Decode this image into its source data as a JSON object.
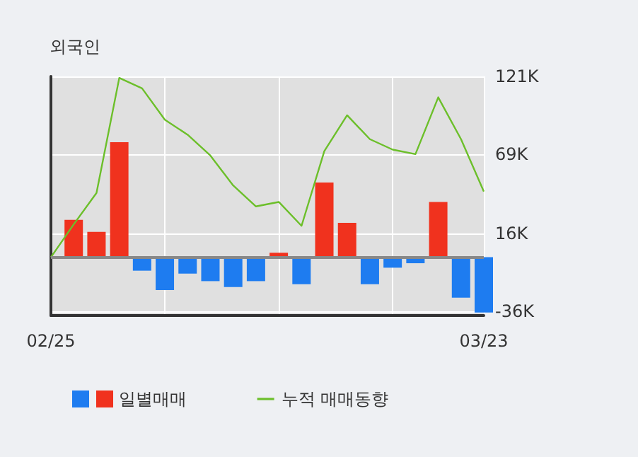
{
  "chart_data": {
    "type": "bar",
    "title": "외국인",
    "categories": [
      "02/25",
      null,
      null,
      null,
      null,
      null,
      null,
      null,
      null,
      null,
      null,
      null,
      null,
      null,
      null,
      null,
      null,
      null,
      null,
      "03/23"
    ],
    "series": [
      {
        "name": "일별매매",
        "colors": [
          "#f0321e",
          "#f0321e",
          "#f0321e",
          "#f0321e",
          "#1e7cf0",
          "#1e7cf0",
          "#1e7cf0",
          "#1e7cf0",
          "#1e7cf0",
          "#1e7cf0",
          "#f0321e",
          "#1e7cf0",
          "#f0321e",
          "#f0321e",
          "#1e7cf0",
          "#1e7cf0",
          "#1e7cf0",
          "#f0321e",
          "#1e7cf0",
          "#1e7cf0"
        ],
        "values": [
          null,
          25000,
          17000,
          77000,
          -9000,
          -22000,
          -11000,
          -16000,
          -20000,
          -16000,
          3000,
          -18000,
          50000,
          23000,
          -18000,
          -7000,
          -4000,
          37000,
          -27000,
          -37000
        ]
      },
      {
        "name": "누적 매매동향",
        "type": "line",
        "color": "#6cbf2a",
        "values": [
          0,
          22000,
          43000,
          120000,
          113000,
          92000,
          82000,
          68000,
          48000,
          34000,
          37000,
          21000,
          71000,
          95000,
          79000,
          72000,
          69000,
          107000,
          79000,
          44000
        ]
      }
    ],
    "ylim": [
      -39000,
      121000
    ],
    "yticks": [
      {
        "value": -36000,
        "label": "-36K"
      },
      {
        "value": 16000,
        "label": "16K"
      },
      {
        "value": 69000,
        "label": "69K"
      },
      {
        "value": 121000,
        "label": "121K"
      }
    ],
    "ref_lines": [
      {
        "axis": "y",
        "value": 0,
        "color": "#888888"
      }
    ],
    "grid": true,
    "legend": "bottom",
    "marker": "none"
  }
}
